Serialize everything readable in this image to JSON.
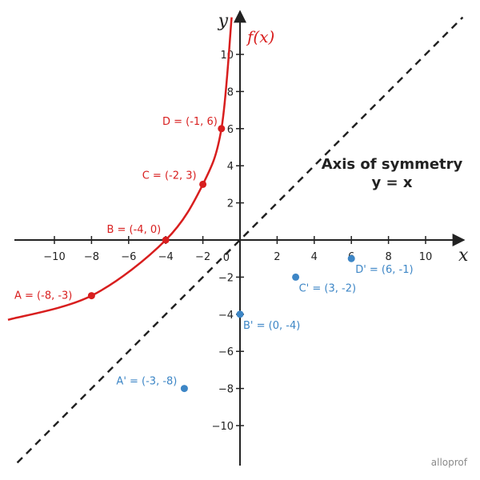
{
  "chart_data": {
    "type": "line",
    "xlabel": "x",
    "ylabel": "y",
    "xlim": [
      -12.5,
      12
    ],
    "ylim": [
      -12,
      12
    ],
    "x_ticks": [
      -10,
      -8,
      -6,
      -4,
      -2,
      2,
      4,
      6,
      8,
      10
    ],
    "y_ticks": [
      -10,
      -8,
      -6,
      -4,
      -2,
      2,
      4,
      6,
      8,
      10
    ],
    "origin_label": "0",
    "curve": {
      "name": "f(x)",
      "color": "#d81e1e",
      "points": [
        [
          -12.5,
          -4.3
        ],
        [
          -8,
          -3
        ],
        [
          -4,
          0
        ],
        [
          -2,
          3
        ],
        [
          -1,
          6
        ],
        [
          -0.45,
          12
        ]
      ]
    },
    "symmetry_line": {
      "label_line1": "Axis of symmetry",
      "label_line2": "y = x",
      "style": "dashed",
      "color": "#222222"
    },
    "red_points": [
      {
        "label": "A = (-8, -3)",
        "x": -8,
        "y": -3
      },
      {
        "label": "B = (-4, 0)",
        "x": -4,
        "y": 0
      },
      {
        "label": "C = (-2, 3)",
        "x": -2,
        "y": 3
      },
      {
        "label": "D = (-1, 6)",
        "x": -1,
        "y": 6
      }
    ],
    "blue_points": [
      {
        "label": "A' = (-3, -8)",
        "x": -3,
        "y": -8
      },
      {
        "label": "B' = (0, -4)",
        "x": 0,
        "y": -4
      },
      {
        "label": "C' = (3, -2)",
        "x": 3,
        "y": -2
      },
      {
        "label": "D' = (6, -1)",
        "x": 6,
        "y": -1
      }
    ],
    "colors": {
      "red": "#d81e1e",
      "blue": "#3d86c6",
      "axis": "#222222"
    },
    "grid": false
  },
  "brand": "alloprof"
}
